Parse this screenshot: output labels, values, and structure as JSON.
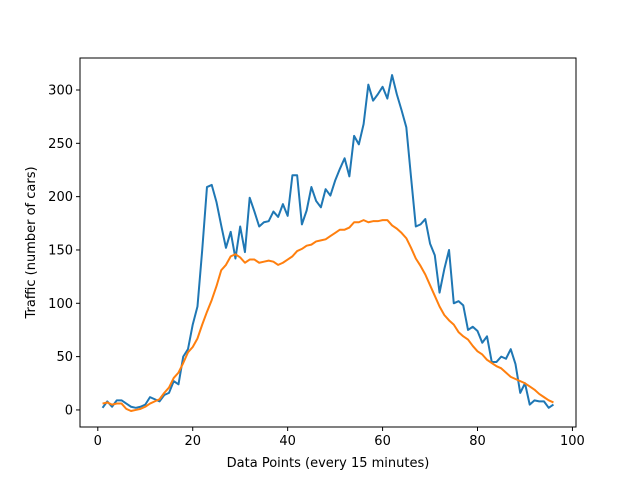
{
  "chart_data": {
    "type": "line",
    "title": "",
    "xlabel": "Data Points (every 15 minutes)",
    "ylabel": "Traffic (number of cars)",
    "xlim": [
      -3.75,
      100.75
    ],
    "ylim": [
      -16,
      330
    ],
    "xticks": [
      0,
      20,
      40,
      60,
      80,
      100
    ],
    "yticks": [
      0,
      50,
      100,
      150,
      200,
      250,
      300
    ],
    "grid": false,
    "legend": "none",
    "series": [
      {
        "color": "#1f77b4",
        "x": [
          1,
          2,
          3,
          4,
          5,
          6,
          7,
          8,
          9,
          10,
          11,
          12,
          13,
          14,
          15,
          16,
          17,
          18,
          19,
          20,
          21,
          22,
          23,
          24,
          25,
          26,
          27,
          28,
          29,
          30,
          31,
          32,
          33,
          34,
          35,
          36,
          37,
          38,
          39,
          40,
          41,
          42,
          43,
          44,
          45,
          46,
          47,
          48,
          49,
          50,
          51,
          52,
          53,
          54,
          55,
          56,
          57,
          58,
          59,
          60,
          61,
          62,
          63,
          64,
          65,
          66,
          67,
          68,
          69,
          70,
          71,
          72,
          73,
          74,
          75,
          76,
          77,
          78,
          79,
          80,
          81,
          82,
          83,
          84,
          85,
          86,
          87,
          88,
          89,
          90,
          91,
          92,
          93,
          94,
          95,
          96
        ],
        "y": [
          2,
          8,
          3,
          9,
          9,
          6,
          3,
          2,
          3,
          5,
          12,
          10,
          8,
          14,
          16,
          27,
          24,
          50,
          57,
          80,
          97,
          150,
          209,
          211,
          195,
          173,
          152,
          167,
          142,
          172,
          148,
          199,
          186,
          172,
          176,
          177,
          186,
          181,
          193,
          182,
          220,
          220,
          174,
          187,
          209,
          196,
          190,
          207,
          201,
          215,
          226,
          236,
          219,
          257,
          249,
          268,
          305,
          290,
          296,
          303,
          292,
          314,
          296,
          281,
          265,
          218,
          172,
          174,
          179,
          156,
          145,
          110,
          132,
          150,
          100,
          102,
          98,
          75,
          78,
          74,
          63,
          69,
          45,
          45,
          50,
          48,
          57,
          43,
          16,
          25,
          5,
          9,
          8,
          8,
          2,
          5
        ]
      },
      {
        "color": "#ff7f0e",
        "x": [
          1,
          2,
          3,
          4,
          5,
          6,
          7,
          8,
          9,
          10,
          11,
          12,
          13,
          14,
          15,
          16,
          17,
          18,
          19,
          20,
          21,
          22,
          23,
          24,
          25,
          26,
          27,
          28,
          29,
          30,
          31,
          32,
          33,
          34,
          35,
          36,
          37,
          38,
          39,
          40,
          41,
          42,
          43,
          44,
          45,
          46,
          47,
          48,
          49,
          50,
          51,
          52,
          53,
          54,
          55,
          56,
          57,
          58,
          59,
          60,
          61,
          62,
          63,
          64,
          65,
          66,
          67,
          68,
          69,
          70,
          71,
          72,
          73,
          74,
          75,
          76,
          77,
          78,
          79,
          80,
          81,
          82,
          83,
          84,
          85,
          86,
          87,
          88,
          89,
          90,
          91,
          92,
          93,
          94,
          95,
          96
        ],
        "y": [
          6,
          7,
          5,
          6,
          6,
          1,
          -1,
          0,
          1,
          3,
          6,
          8,
          10,
          16,
          21,
          30,
          35,
          44,
          54,
          59,
          67,
          80,
          92,
          103,
          116,
          131,
          136,
          144,
          146,
          143,
          138,
          141,
          141,
          138,
          139,
          140,
          139,
          136,
          138,
          141,
          144,
          149,
          151,
          154,
          155,
          158,
          159,
          160,
          163,
          166,
          169,
          169,
          171,
          176,
          176,
          178,
          176,
          177,
          177,
          178,
          178,
          173,
          170,
          166,
          161,
          152,
          142,
          135,
          127,
          117,
          107,
          97,
          89,
          84,
          80,
          73,
          69,
          66,
          60,
          55,
          52,
          47,
          44,
          41,
          39,
          35,
          31,
          29,
          27,
          25,
          22,
          19,
          15,
          12,
          9,
          7
        ]
      }
    ]
  }
}
